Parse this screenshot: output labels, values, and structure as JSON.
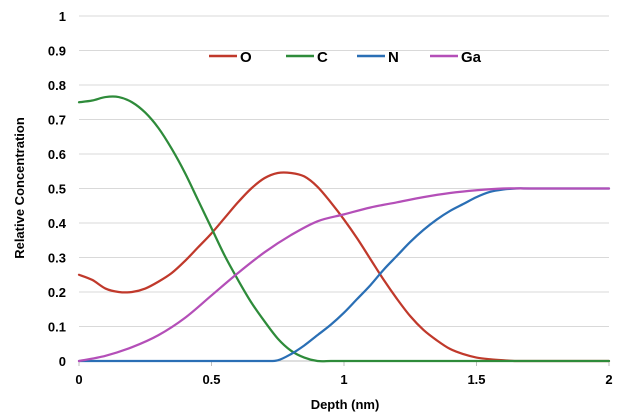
{
  "chart_data": {
    "type": "line",
    "title": "",
    "xlabel": "Depth (nm)",
    "ylabel": "Relative Concentration",
    "xlim": [
      0,
      2
    ],
    "ylim": [
      0,
      1
    ],
    "xticks": [
      0,
      0.5,
      1,
      1.5,
      2
    ],
    "xtick_labels": [
      "0",
      "0.5",
      "1",
      "1.5",
      "2"
    ],
    "yticks": [
      0,
      0.1,
      0.2,
      0.3,
      0.4,
      0.5,
      0.6,
      0.7,
      0.8,
      0.9,
      1
    ],
    "ytick_labels": [
      "0",
      "0.1",
      "0.2",
      "0.3",
      "0.4",
      "0.5",
      "0.6",
      "0.7",
      "0.8",
      "0.9",
      "1"
    ],
    "grid": "horizontal",
    "legend_position": "top-center",
    "series": [
      {
        "name": "O",
        "color": "#c0392b",
        "x": [
          0,
          0.05,
          0.1,
          0.15,
          0.2,
          0.25,
          0.3,
          0.35,
          0.4,
          0.45,
          0.5,
          0.55,
          0.6,
          0.65,
          0.7,
          0.75,
          0.8,
          0.85,
          0.9,
          0.95,
          1.0,
          1.05,
          1.1,
          1.15,
          1.2,
          1.25,
          1.3,
          1.35,
          1.4,
          1.45,
          1.5,
          1.55,
          1.6,
          1.65,
          1.7,
          1.8,
          1.9,
          2.0
        ],
        "y": [
          0.25,
          0.235,
          0.21,
          0.2,
          0.2,
          0.21,
          0.23,
          0.255,
          0.29,
          0.33,
          0.37,
          0.415,
          0.46,
          0.5,
          0.53,
          0.545,
          0.545,
          0.535,
          0.505,
          0.46,
          0.41,
          0.355,
          0.295,
          0.235,
          0.18,
          0.13,
          0.09,
          0.06,
          0.035,
          0.02,
          0.01,
          0.005,
          0.002,
          0,
          0,
          0,
          0,
          0
        ]
      },
      {
        "name": "C",
        "color": "#2e8b3a",
        "x": [
          0,
          0.05,
          0.1,
          0.15,
          0.2,
          0.25,
          0.3,
          0.35,
          0.4,
          0.45,
          0.5,
          0.55,
          0.6,
          0.65,
          0.7,
          0.75,
          0.8,
          0.85,
          0.9,
          0.95,
          1.0,
          1.1,
          1.2,
          1.4,
          1.6,
          1.8,
          2.0
        ],
        "y": [
          0.75,
          0.755,
          0.765,
          0.765,
          0.75,
          0.72,
          0.675,
          0.615,
          0.545,
          0.465,
          0.385,
          0.305,
          0.235,
          0.17,
          0.115,
          0.065,
          0.03,
          0.01,
          0,
          0,
          0,
          0,
          0,
          0,
          0,
          0,
          0
        ]
      },
      {
        "name": "N",
        "color": "#2a6fb5",
        "x": [
          0,
          0.2,
          0.4,
          0.6,
          0.7,
          0.75,
          0.8,
          0.85,
          0.9,
          0.95,
          1.0,
          1.05,
          1.1,
          1.15,
          1.2,
          1.25,
          1.3,
          1.35,
          1.4,
          1.45,
          1.5,
          1.55,
          1.6,
          1.65,
          1.7,
          1.8,
          1.9,
          2.0
        ],
        "y": [
          0,
          0,
          0,
          0,
          0,
          0.002,
          0.02,
          0.045,
          0.075,
          0.105,
          0.14,
          0.18,
          0.22,
          0.265,
          0.305,
          0.345,
          0.38,
          0.41,
          0.435,
          0.455,
          0.475,
          0.49,
          0.497,
          0.5,
          0.5,
          0.5,
          0.5,
          0.5
        ]
      },
      {
        "name": "Ga",
        "color": "#b44fb8",
        "x": [
          0,
          0.1,
          0.2,
          0.3,
          0.4,
          0.5,
          0.6,
          0.7,
          0.8,
          0.9,
          1.0,
          1.1,
          1.2,
          1.3,
          1.4,
          1.5,
          1.6,
          1.7,
          1.8,
          1.9,
          2.0
        ],
        "y": [
          0,
          0.015,
          0.04,
          0.075,
          0.125,
          0.19,
          0.255,
          0.315,
          0.365,
          0.405,
          0.425,
          0.445,
          0.46,
          0.475,
          0.487,
          0.495,
          0.5,
          0.5,
          0.5,
          0.5,
          0.5
        ]
      }
    ]
  }
}
